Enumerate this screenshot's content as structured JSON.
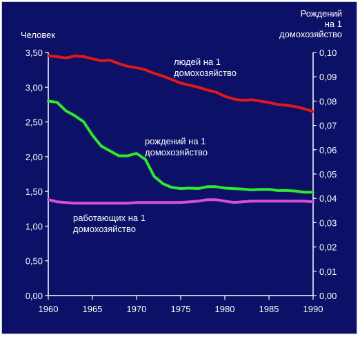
{
  "chart_data": {
    "type": "line",
    "title": "",
    "y_left_label": "Человек",
    "y_right_label_lines": [
      "Рождений",
      "на 1",
      "домохозяйство"
    ],
    "x_ticks": [
      "1960",
      "1965",
      "1970",
      "1975",
      "1980",
      "1985",
      "1990"
    ],
    "y_left_ticks": [
      "0,00",
      "0,50",
      "1,00",
      "1,50",
      "2,00",
      "2,50",
      "3,00",
      "3,50"
    ],
    "y_right_ticks": [
      "0,00",
      "0,01",
      "0,02",
      "0,03",
      "0,04",
      "0,05",
      "0,06",
      "0,07",
      "0,08",
      "0,09",
      "0,10"
    ],
    "xlim": [
      1960,
      1990
    ],
    "ylim_left": [
      0,
      3.5
    ],
    "ylim_right": [
      0,
      0.1
    ],
    "grid": false,
    "colors": {
      "background": "#0c1066",
      "axis": "#ffffff"
    },
    "series": [
      {
        "key": "people",
        "axis": "left",
        "color": "#e01818",
        "label_lines": [
          "людей на 1",
          "домохозяйство"
        ],
        "x": [
          1960,
          1961,
          1962,
          1963,
          1964,
          1965,
          1966,
          1967,
          1968,
          1969,
          1970,
          1971,
          1972,
          1973,
          1974,
          1975,
          1976,
          1977,
          1978,
          1979,
          1980,
          1981,
          1982,
          1983,
          1984,
          1985,
          1986,
          1987,
          1988,
          1989,
          1990
        ],
        "y": [
          3.45,
          3.44,
          3.42,
          3.45,
          3.44,
          3.41,
          3.38,
          3.39,
          3.34,
          3.3,
          3.28,
          3.25,
          3.2,
          3.16,
          3.11,
          3.06,
          3.03,
          3.0,
          2.96,
          2.93,
          2.87,
          2.83,
          2.81,
          2.82,
          2.8,
          2.78,
          2.75,
          2.74,
          2.72,
          2.69,
          2.65
        ]
      },
      {
        "key": "births",
        "axis": "right",
        "color": "#2ee82e",
        "label_lines": [
          "рождений на 1",
          "домохозяйство"
        ],
        "x": [
          1960,
          1961,
          1962,
          1963,
          1964,
          1965,
          1966,
          1967,
          1968,
          1969,
          1970,
          1971,
          1972,
          1973,
          1974,
          1975,
          1976,
          1977,
          1978,
          1979,
          1980,
          1981,
          1982,
          1983,
          1984,
          1985,
          1986,
          1987,
          1988,
          1989,
          1990
        ],
        "y": [
          0.08,
          0.0795,
          0.076,
          0.074,
          0.0715,
          0.066,
          0.0615,
          0.0595,
          0.0575,
          0.0575,
          0.0585,
          0.056,
          0.049,
          0.046,
          0.0445,
          0.044,
          0.0442,
          0.044,
          0.0448,
          0.0448,
          0.0442,
          0.044,
          0.0438,
          0.0435,
          0.0437,
          0.0437,
          0.0432,
          0.0432,
          0.043,
          0.0425,
          0.0425
        ]
      },
      {
        "key": "workers",
        "axis": "left",
        "color": "#d850d8",
        "label_lines": [
          "работающих на 1",
          "домохозяйство"
        ],
        "x": [
          1960,
          1961,
          1962,
          1963,
          1964,
          1965,
          1966,
          1967,
          1968,
          1969,
          1970,
          1971,
          1972,
          1973,
          1974,
          1975,
          1976,
          1977,
          1978,
          1979,
          1980,
          1981,
          1982,
          1983,
          1984,
          1985,
          1986,
          1987,
          1988,
          1989,
          1990
        ],
        "y": [
          1.38,
          1.35,
          1.34,
          1.33,
          1.33,
          1.33,
          1.33,
          1.33,
          1.33,
          1.33,
          1.34,
          1.34,
          1.34,
          1.34,
          1.34,
          1.34,
          1.35,
          1.36,
          1.38,
          1.38,
          1.36,
          1.34,
          1.35,
          1.36,
          1.36,
          1.36,
          1.36,
          1.36,
          1.36,
          1.36,
          1.35
        ]
      }
    ]
  }
}
